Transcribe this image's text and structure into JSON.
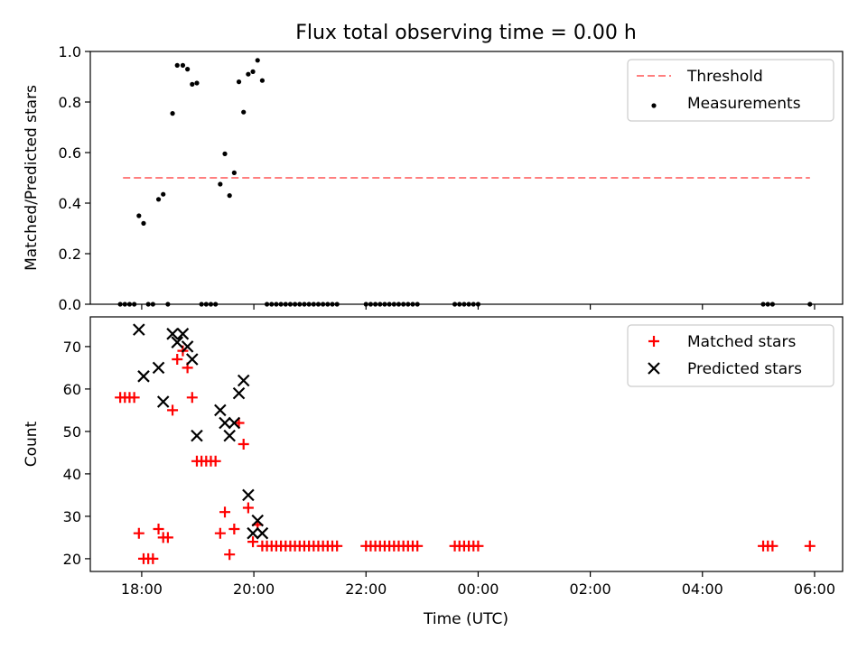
{
  "figure": {
    "title": "Flux total observing time = 0.00 h",
    "xlabel": "Time (UTC)"
  },
  "chart_data": [
    {
      "type": "scatter",
      "ylabel": "Matched/Predicted stars",
      "ylim": [
        0,
        1.0
      ],
      "yticks": [
        0.0,
        0.2,
        0.4,
        0.6,
        0.8,
        1.0
      ],
      "ytick_labels": [
        "0.0",
        "0.2",
        "0.4",
        "0.6",
        "0.8",
        "1.0"
      ],
      "xlim": [
        "17:05",
        "06:30"
      ],
      "xticks": [
        "18:00",
        "20:00",
        "22:00",
        "00:00",
        "02:00",
        "04:00",
        "06:00"
      ],
      "xtick_labels": [],
      "legend_position": "top-right",
      "threshold": {
        "name": "Threshold",
        "value": 0.5,
        "x": [
          "17:40",
          "05:55"
        ],
        "color": "#ff7f7f",
        "style": "dashed"
      },
      "series": [
        {
          "name": "Measurements",
          "color": "#000000",
          "points": [
            [
              "17:37",
              0
            ],
            [
              "17:42",
              0
            ],
            [
              "17:47",
              0
            ],
            [
              "17:52",
              0
            ],
            [
              "17:57",
              0.35
            ],
            [
              "18:02",
              0.32
            ],
            [
              "18:07",
              0
            ],
            [
              "18:12",
              0
            ],
            [
              "18:18",
              0.415
            ],
            [
              "18:23",
              0.435
            ],
            [
              "18:28",
              0
            ],
            [
              "18:33",
              0.755
            ],
            [
              "18:38",
              0.945
            ],
            [
              "18:44",
              0.945
            ],
            [
              "18:49",
              0.93
            ],
            [
              "18:54",
              0.87
            ],
            [
              "18:59",
              0.875
            ],
            [
              "19:04",
              0
            ],
            [
              "19:09",
              0
            ],
            [
              "19:14",
              0
            ],
            [
              "19:19",
              0
            ],
            [
              "19:24",
              0.475
            ],
            [
              "19:29",
              0.595
            ],
            [
              "19:34",
              0.43
            ],
            [
              "19:39",
              0.52
            ],
            [
              "19:44",
              0.88
            ],
            [
              "19:49",
              0.76
            ],
            [
              "19:54",
              0.91
            ],
            [
              "19:59",
              0.92
            ],
            [
              "20:04",
              0.965
            ],
            [
              "20:09",
              0.885
            ],
            [
              "20:14",
              0
            ],
            [
              "20:19",
              0
            ],
            [
              "20:24",
              0
            ],
            [
              "20:29",
              0
            ],
            [
              "20:34",
              0
            ],
            [
              "20:39",
              0
            ],
            [
              "20:44",
              0
            ],
            [
              "20:49",
              0
            ],
            [
              "20:54",
              0
            ],
            [
              "20:59",
              0
            ],
            [
              "21:04",
              0
            ],
            [
              "21:09",
              0
            ],
            [
              "21:14",
              0
            ],
            [
              "21:19",
              0
            ],
            [
              "21:24",
              0
            ],
            [
              "21:29",
              0
            ],
            [
              "22:00",
              0
            ],
            [
              "22:05",
              0
            ],
            [
              "22:10",
              0
            ],
            [
              "22:15",
              0
            ],
            [
              "22:20",
              0
            ],
            [
              "22:25",
              0
            ],
            [
              "22:30",
              0
            ],
            [
              "22:35",
              0
            ],
            [
              "22:40",
              0
            ],
            [
              "22:45",
              0
            ],
            [
              "22:50",
              0
            ],
            [
              "22:55",
              0
            ],
            [
              "23:35",
              0
            ],
            [
              "23:40",
              0
            ],
            [
              "23:45",
              0
            ],
            [
              "23:50",
              0
            ],
            [
              "23:55",
              0
            ],
            [
              "00:00",
              0
            ],
            [
              "05:05",
              0
            ],
            [
              "05:10",
              0
            ],
            [
              "05:15",
              0
            ],
            [
              "05:55",
              0
            ]
          ]
        }
      ]
    },
    {
      "type": "scatter",
      "ylabel": "Count",
      "ylim": [
        17,
        77
      ],
      "yticks": [
        20,
        30,
        40,
        50,
        60,
        70
      ],
      "ytick_labels": [
        "20",
        "30",
        "40",
        "50",
        "60",
        "70"
      ],
      "xlim": [
        "17:05",
        "06:30"
      ],
      "xticks": [
        "18:00",
        "20:00",
        "22:00",
        "00:00",
        "02:00",
        "04:00",
        "06:00"
      ],
      "xtick_labels": [
        "18:00",
        "20:00",
        "22:00",
        "00:00",
        "02:00",
        "04:00",
        "06:00"
      ],
      "legend_position": "top-right",
      "series": [
        {
          "name": "Matched stars",
          "marker": "plus",
          "color": "#ff0000",
          "points": [
            [
              "17:37",
              58
            ],
            [
              "17:42",
              58
            ],
            [
              "17:47",
              58
            ],
            [
              "17:52",
              58
            ],
            [
              "17:57",
              26
            ],
            [
              "18:02",
              20
            ],
            [
              "18:07",
              20
            ],
            [
              "18:12",
              20
            ],
            [
              "18:18",
              27
            ],
            [
              "18:23",
              25
            ],
            [
              "18:28",
              25
            ],
            [
              "18:33",
              55
            ],
            [
              "18:38",
              67
            ],
            [
              "18:44",
              69
            ],
            [
              "18:49",
              65
            ],
            [
              "18:54",
              58
            ],
            [
              "18:59",
              43
            ],
            [
              "19:04",
              43
            ],
            [
              "19:09",
              43
            ],
            [
              "19:14",
              43
            ],
            [
              "19:19",
              43
            ],
            [
              "19:24",
              26
            ],
            [
              "19:29",
              31
            ],
            [
              "19:34",
              21
            ],
            [
              "19:39",
              27
            ],
            [
              "19:44",
              52
            ],
            [
              "19:49",
              47
            ],
            [
              "19:54",
              32
            ],
            [
              "19:59",
              24
            ],
            [
              "20:04",
              28
            ],
            [
              "20:09",
              23
            ],
            [
              "20:14",
              23
            ],
            [
              "20:19",
              23
            ],
            [
              "20:24",
              23
            ],
            [
              "20:29",
              23
            ],
            [
              "20:34",
              23
            ],
            [
              "20:39",
              23
            ],
            [
              "20:44",
              23
            ],
            [
              "20:49",
              23
            ],
            [
              "20:54",
              23
            ],
            [
              "20:59",
              23
            ],
            [
              "21:04",
              23
            ],
            [
              "21:09",
              23
            ],
            [
              "21:14",
              23
            ],
            [
              "21:19",
              23
            ],
            [
              "21:24",
              23
            ],
            [
              "21:29",
              23
            ],
            [
              "22:00",
              23
            ],
            [
              "22:05",
              23
            ],
            [
              "22:10",
              23
            ],
            [
              "22:15",
              23
            ],
            [
              "22:20",
              23
            ],
            [
              "22:25",
              23
            ],
            [
              "22:30",
              23
            ],
            [
              "22:35",
              23
            ],
            [
              "22:40",
              23
            ],
            [
              "22:45",
              23
            ],
            [
              "22:50",
              23
            ],
            [
              "22:55",
              23
            ],
            [
              "23:35",
              23
            ],
            [
              "23:40",
              23
            ],
            [
              "23:45",
              23
            ],
            [
              "23:50",
              23
            ],
            [
              "23:55",
              23
            ],
            [
              "00:00",
              23
            ],
            [
              "05:05",
              23
            ],
            [
              "05:10",
              23
            ],
            [
              "05:15",
              23
            ],
            [
              "05:55",
              23
            ]
          ]
        },
        {
          "name": "Predicted stars",
          "marker": "x",
          "color": "#000000",
          "points": [
            [
              "17:57",
              74
            ],
            [
              "18:02",
              63
            ],
            [
              "18:18",
              65
            ],
            [
              "18:23",
              57
            ],
            [
              "18:33",
              73
            ],
            [
              "18:38",
              71
            ],
            [
              "18:44",
              73
            ],
            [
              "18:49",
              70
            ],
            [
              "18:54",
              67
            ],
            [
              "18:59",
              49
            ],
            [
              "19:24",
              55
            ],
            [
              "19:29",
              52
            ],
            [
              "19:34",
              49
            ],
            [
              "19:39",
              52
            ],
            [
              "19:44",
              59
            ],
            [
              "19:49",
              62
            ],
            [
              "19:54",
              35
            ],
            [
              "19:59",
              26
            ],
            [
              "20:04",
              29
            ],
            [
              "20:09",
              26
            ]
          ]
        }
      ]
    }
  ]
}
